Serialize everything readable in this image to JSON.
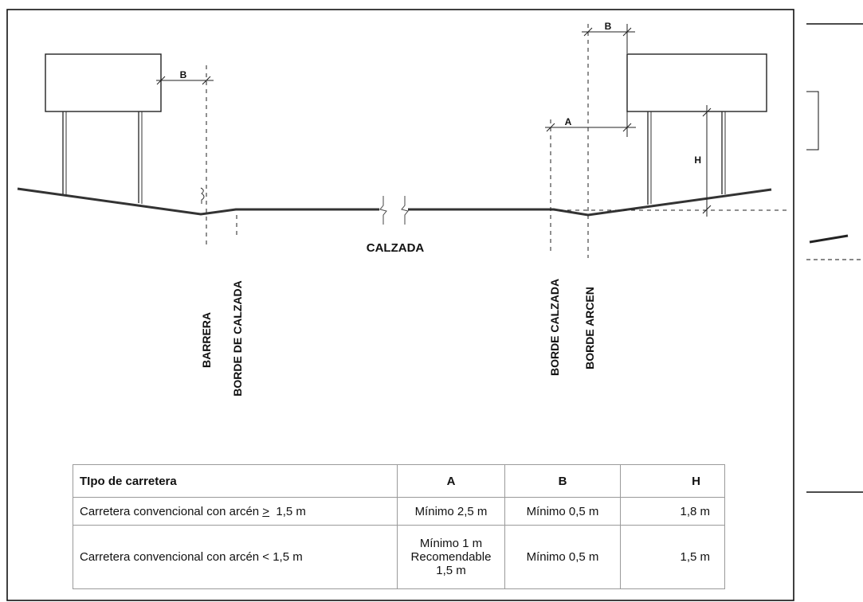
{
  "diagram": {
    "dimensions": {
      "b_left": "B",
      "b_right": "B",
      "a": "A",
      "h": "H"
    },
    "labels": {
      "calzada": "CALZADA",
      "barrera": "BARRERA",
      "borde_de_calzada": "BORDE DE CALZADA",
      "borde_calzada": "BORDE CALZADA",
      "borde_arcen": "BORDE ARCEN"
    }
  },
  "table": {
    "headers": [
      "TIpo de carretera",
      "A",
      "B",
      "H"
    ],
    "rows": [
      {
        "tipo": "Carretera convencional con arcén ",
        "tipo_symbol": ">",
        "tipo_end": "  1,5 m",
        "a": "Mínimo 2,5 m",
        "b": "Mínimo 0,5 m",
        "h": "1,8 m"
      },
      {
        "tipo": "Carretera convencional con arcén < 1,5 m",
        "a_lines": [
          "Mínimo 1 m",
          "Recomendable",
          "1,5 m"
        ],
        "b": "Mínimo 0,5 m",
        "h": "1,5 m"
      }
    ]
  }
}
